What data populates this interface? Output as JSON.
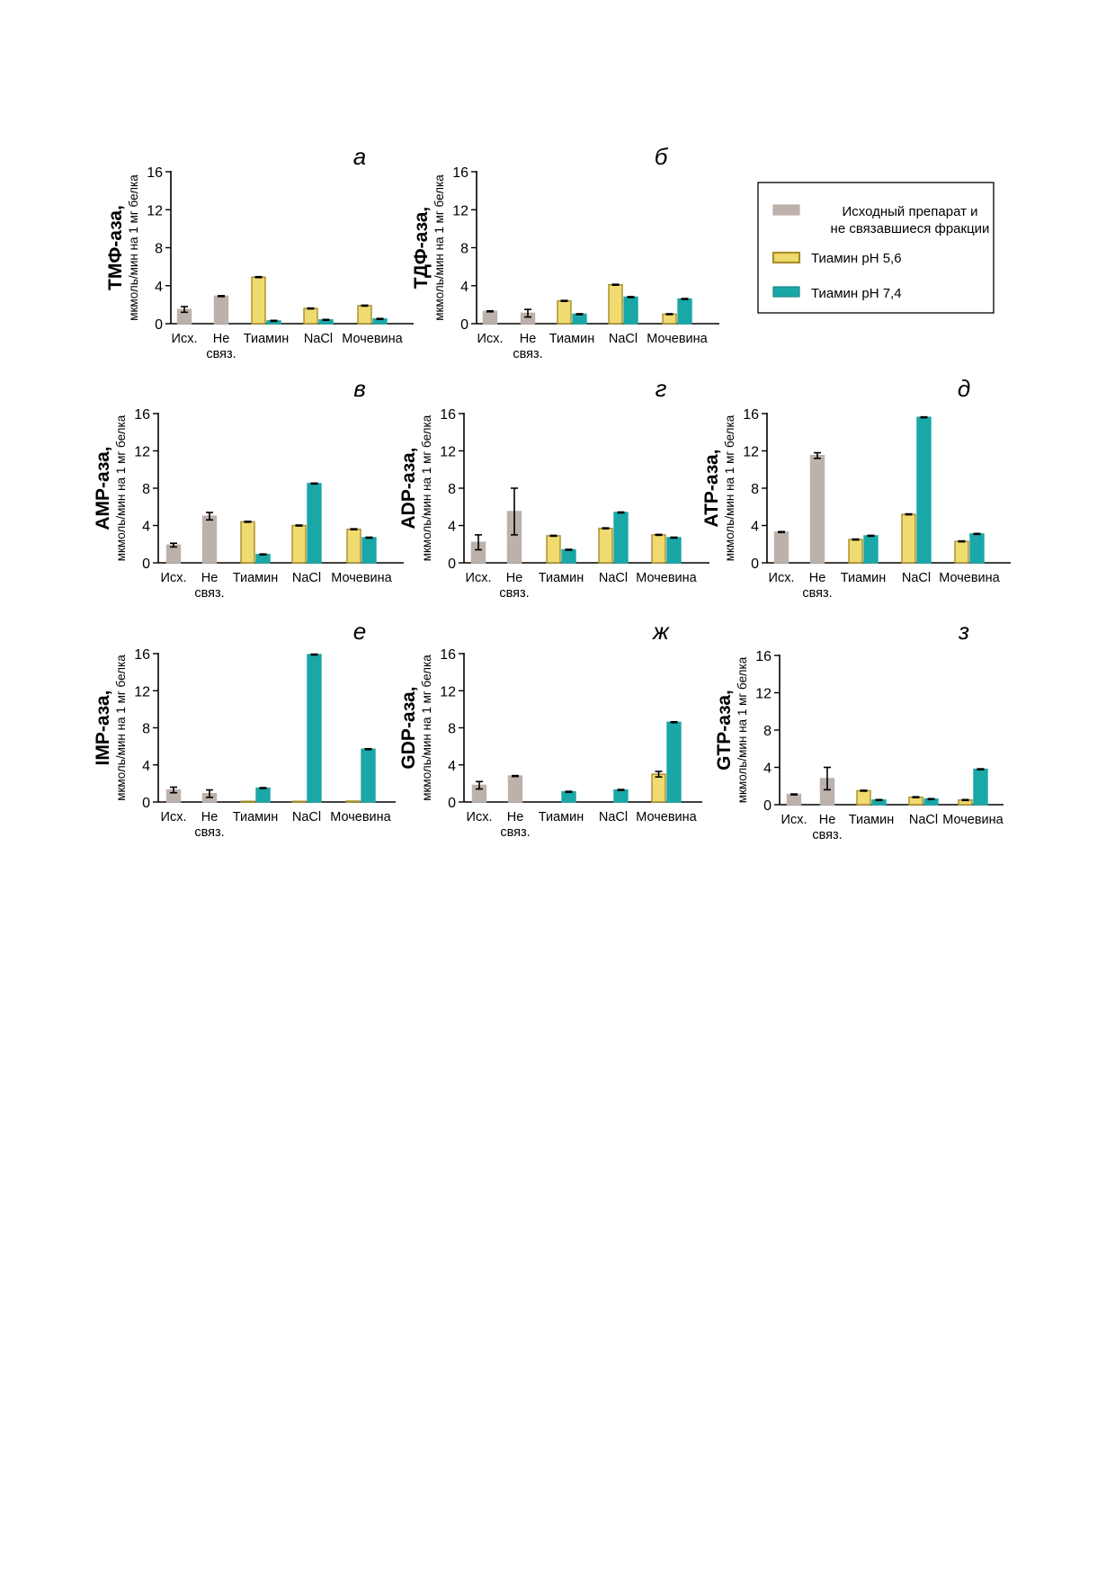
{
  "legend": {
    "items": [
      {
        "key": "ref",
        "label_lines": [
          "Исходный препарат и",
          "не связавшиеся фракции"
        ],
        "fill": "#bdb1ac",
        "stroke": "#bdb1ac"
      },
      {
        "key": "ph56",
        "label_lines": [
          "Тиамин рН 5,6"
        ],
        "fill": "#f0db70",
        "stroke": "#a78d2a"
      },
      {
        "key": "ph74",
        "label_lines": [
          "Тиамин рН 7,4"
        ],
        "fill": "#1aa7a8",
        "stroke": "#17898b"
      }
    ]
  },
  "colors": {
    "ref": "#bdb1ac",
    "ph56": "#f0db70",
    "ph56_edge": "#a78d2a",
    "ph74": "#1aa7a8",
    "axis": "#000000"
  },
  "chart_data": [
    {
      "type": "bar",
      "letter": "а",
      "ylabel_main": "ТМФ-аза,",
      "ylabel_sub": "мкмоль/мин на 1 мг белка",
      "ylim": [
        0,
        16
      ],
      "yticks": [
        "0",
        "4",
        "8",
        "12",
        "16"
      ],
      "categories": [
        [
          "Исх."
        ],
        [
          "Не",
          "связ."
        ],
        [
          "Тиамин"
        ],
        [
          "NaCl"
        ],
        [
          "Мочевина"
        ]
      ],
      "bars": [
        {
          "category": 0,
          "series": "ref",
          "value": 1.5,
          "err": 0.3
        },
        {
          "category": 1,
          "series": "ref",
          "value": 2.9,
          "err": 0.1
        },
        {
          "category": 2,
          "series": "ph56",
          "value": 4.9,
          "err": 0.1
        },
        {
          "category": 2,
          "series": "ph74",
          "value": 0.3,
          "err": 0.05
        },
        {
          "category": 3,
          "series": "ph56",
          "value": 1.6,
          "err": 0.1
        },
        {
          "category": 3,
          "series": "ph74",
          "value": 0.4,
          "err": 0.05
        },
        {
          "category": 4,
          "series": "ph56",
          "value": 1.9,
          "err": 0.1
        },
        {
          "category": 4,
          "series": "ph74",
          "value": 0.5,
          "err": 0.05
        }
      ]
    },
    {
      "type": "bar",
      "letter": "б",
      "ylabel_main": "ТДФ-аза,",
      "ylabel_sub": "мкмоль/мин на 1 мг белка",
      "ylim": [
        0,
        16
      ],
      "yticks": [
        "0",
        "4",
        "8",
        "12",
        "16"
      ],
      "categories": [
        [
          "Исх."
        ],
        [
          "Не",
          "связ."
        ],
        [
          "Тиамин"
        ],
        [
          "NaCl"
        ],
        [
          "Мочевина"
        ]
      ],
      "bars": [
        {
          "category": 0,
          "series": "ref",
          "value": 1.3,
          "err": 0.1
        },
        {
          "category": 1,
          "series": "ref",
          "value": 1.1,
          "err": 0.4
        },
        {
          "category": 2,
          "series": "ph56",
          "value": 2.4,
          "err": 0.1
        },
        {
          "category": 2,
          "series": "ph74",
          "value": 1.0,
          "err": 0.05
        },
        {
          "category": 3,
          "series": "ph56",
          "value": 4.1,
          "err": 0.1
        },
        {
          "category": 3,
          "series": "ph74",
          "value": 2.8,
          "err": 0.1
        },
        {
          "category": 4,
          "series": "ph56",
          "value": 1.0,
          "err": 0.05
        },
        {
          "category": 4,
          "series": "ph74",
          "value": 2.6,
          "err": 0.1
        }
      ]
    },
    {
      "type": "bar",
      "letter": "в",
      "ylabel_main": "AMP-аза,",
      "ylabel_sub": "мкмоль/мин на 1 мг белка",
      "ylim": [
        0,
        16
      ],
      "yticks": [
        "0",
        "4",
        "8",
        "12",
        "16"
      ],
      "categories": [
        [
          "Исх."
        ],
        [
          "Не",
          "связ."
        ],
        [
          "Тиамин"
        ],
        [
          "NaCl"
        ],
        [
          "Мочевина"
        ]
      ],
      "bars": [
        {
          "category": 0,
          "series": "ref",
          "value": 1.9,
          "err": 0.2
        },
        {
          "category": 1,
          "series": "ref",
          "value": 5.0,
          "err": 0.4
        },
        {
          "category": 2,
          "series": "ph56",
          "value": 4.4,
          "err": 0.1
        },
        {
          "category": 2,
          "series": "ph74",
          "value": 0.9,
          "err": 0.05
        },
        {
          "category": 3,
          "series": "ph56",
          "value": 4.0,
          "err": 0.1
        },
        {
          "category": 3,
          "series": "ph74",
          "value": 8.5,
          "err": 0.1
        },
        {
          "category": 4,
          "series": "ph56",
          "value": 3.6,
          "err": 0.1
        },
        {
          "category": 4,
          "series": "ph74",
          "value": 2.7,
          "err": 0.05
        }
      ]
    },
    {
      "type": "bar",
      "letter": "г",
      "ylabel_main": "ADP-аза,",
      "ylabel_sub": "мкмоль/мин на 1 мг белка",
      "ylim": [
        0,
        16
      ],
      "yticks": [
        "0",
        "4",
        "8",
        "12",
        "16"
      ],
      "categories": [
        [
          "Исх."
        ],
        [
          "Не",
          "связ."
        ],
        [
          "Тиамин"
        ],
        [
          "NaCl"
        ],
        [
          "Мочевина"
        ]
      ],
      "bars": [
        {
          "category": 0,
          "series": "ref",
          "value": 2.2,
          "err": 0.8
        },
        {
          "category": 1,
          "series": "ref",
          "value": 5.5,
          "err": 2.5
        },
        {
          "category": 2,
          "series": "ph56",
          "value": 2.9,
          "err": 0.1
        },
        {
          "category": 2,
          "series": "ph74",
          "value": 1.4,
          "err": 0.05
        },
        {
          "category": 3,
          "series": "ph56",
          "value": 3.7,
          "err": 0.1
        },
        {
          "category": 3,
          "series": "ph74",
          "value": 5.4,
          "err": 0.1
        },
        {
          "category": 4,
          "series": "ph56",
          "value": 3.0,
          "err": 0.1
        },
        {
          "category": 4,
          "series": "ph74",
          "value": 2.7,
          "err": 0.05
        }
      ]
    },
    {
      "type": "bar",
      "letter": "д",
      "ylabel_main": "ATP-аза,",
      "ylabel_sub": "мкмоль/мин на 1 мг белка",
      "ylim": [
        0,
        16
      ],
      "yticks": [
        "0",
        "4",
        "8",
        "12",
        "16"
      ],
      "categories": [
        [
          "Исх."
        ],
        [
          "Не",
          "связ."
        ],
        [
          "Тиамин"
        ],
        [
          "NaCl"
        ],
        [
          "Мочевина"
        ]
      ],
      "bars": [
        {
          "category": 0,
          "series": "ref",
          "value": 3.3,
          "err": 0.1
        },
        {
          "category": 1,
          "series": "ref",
          "value": 11.5,
          "err": 0.3
        },
        {
          "category": 2,
          "series": "ph56",
          "value": 2.5,
          "err": 0.1
        },
        {
          "category": 2,
          "series": "ph74",
          "value": 2.9,
          "err": 0.05
        },
        {
          "category": 3,
          "series": "ph56",
          "value": 5.2,
          "err": 0.1
        },
        {
          "category": 3,
          "series": "ph74",
          "value": 15.6,
          "err": 0.1
        },
        {
          "category": 4,
          "series": "ph56",
          "value": 2.3,
          "err": 0.1
        },
        {
          "category": 4,
          "series": "ph74",
          "value": 3.1,
          "err": 0.05
        }
      ]
    },
    {
      "type": "bar",
      "letter": "е",
      "ylabel_main": "IMP-аза,",
      "ylabel_sub": "мкмоль/мин на 1 мг белка",
      "ylim": [
        0,
        16
      ],
      "yticks": [
        "0",
        "4",
        "8",
        "12",
        "16"
      ],
      "categories": [
        [
          "Исх."
        ],
        [
          "Не",
          "связ."
        ],
        [
          "Тиамин"
        ],
        [
          "NaCl"
        ],
        [
          "Мочевина"
        ]
      ],
      "bars": [
        {
          "category": 0,
          "series": "ref",
          "value": 1.3,
          "err": 0.3
        },
        {
          "category": 1,
          "series": "ref",
          "value": 0.9,
          "err": 0.4
        },
        {
          "category": 2,
          "series": "ph56",
          "value": 0.05,
          "err": 0.0
        },
        {
          "category": 2,
          "series": "ph74",
          "value": 1.5,
          "err": 0.05
        },
        {
          "category": 3,
          "series": "ph56",
          "value": 0.05,
          "err": 0.0
        },
        {
          "category": 3,
          "series": "ph74",
          "value": 15.9,
          "err": 0.1
        },
        {
          "category": 4,
          "series": "ph56",
          "value": 0.1,
          "err": 0.0
        },
        {
          "category": 4,
          "series": "ph74",
          "value": 5.7,
          "err": 0.05
        }
      ]
    },
    {
      "type": "bar",
      "letter": "ж",
      "ylabel_main": "GDP-аза,",
      "ylabel_sub": "мкмоль/мин на 1 мг белка",
      "ylim": [
        0,
        16
      ],
      "yticks": [
        "0",
        "4",
        "8",
        "12",
        "16"
      ],
      "categories": [
        [
          "Исх."
        ],
        [
          "Не",
          "связ."
        ],
        [
          "Тиамин"
        ],
        [
          "NaCl"
        ],
        [
          "Мочевина"
        ]
      ],
      "bars": [
        {
          "category": 0,
          "series": "ref",
          "value": 1.8,
          "err": 0.4
        },
        {
          "category": 1,
          "series": "ref",
          "value": 2.8,
          "err": 0.1
        },
        {
          "category": 2,
          "series": "ph74",
          "value": 1.1,
          "err": 0.0
        },
        {
          "category": 3,
          "series": "ph74",
          "value": 1.3,
          "err": 0.0
        },
        {
          "category": 4,
          "series": "ph56",
          "value": 3.0,
          "err": 0.3
        },
        {
          "category": 4,
          "series": "ph74",
          "value": 8.6,
          "err": 0.1
        }
      ]
    },
    {
      "type": "bar",
      "letter": "з",
      "ylabel_main": "GTP-аза,",
      "ylabel_sub": "мкмоль/мин на 1 мг белка",
      "ylim": [
        0,
        16
      ],
      "yticks": [
        "0",
        "4",
        "8",
        "12",
        "16"
      ],
      "categories": [
        [
          "Исх."
        ],
        [
          "Не",
          "связ."
        ],
        [
          "Тиамин"
        ],
        [
          "NaCl"
        ],
        [
          "Мочевина"
        ]
      ],
      "bars": [
        {
          "category": 0,
          "series": "ref",
          "value": 1.1,
          "err": 0.05
        },
        {
          "category": 1,
          "series": "ref",
          "value": 2.8,
          "err": 1.2
        },
        {
          "category": 2,
          "series": "ph56",
          "value": 1.5,
          "err": 0.05
        },
        {
          "category": 2,
          "series": "ph74",
          "value": 0.5,
          "err": 0.05
        },
        {
          "category": 3,
          "series": "ph56",
          "value": 0.8,
          "err": 0.05
        },
        {
          "category": 3,
          "series": "ph74",
          "value": 0.6,
          "err": 0.05
        },
        {
          "category": 4,
          "series": "ph56",
          "value": 0.5,
          "err": 0.05
        },
        {
          "category": 4,
          "series": "ph74",
          "value": 3.8,
          "err": 0.05
        }
      ]
    }
  ]
}
